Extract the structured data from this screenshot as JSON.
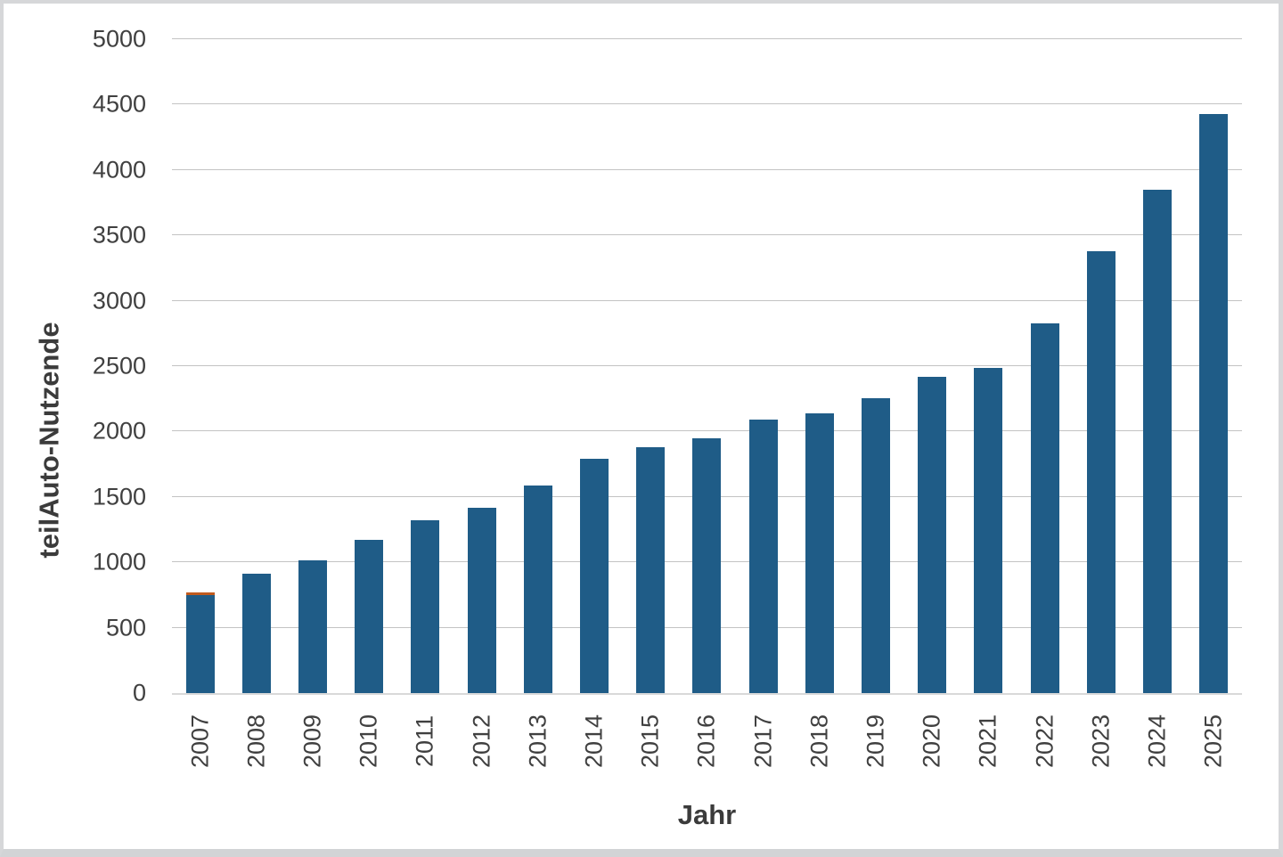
{
  "chart_data": {
    "type": "bar",
    "xlabel": "Jahr",
    "ylabel": "teilAuto-Nutzende",
    "categories": [
      "2007",
      "2008",
      "2009",
      "2010",
      "2011",
      "2012",
      "2013",
      "2014",
      "2015",
      "2016",
      "2017",
      "2018",
      "2019",
      "2020",
      "2021",
      "2022",
      "2023",
      "2024",
      "2025"
    ],
    "values": [
      770,
      915,
      1015,
      1170,
      1320,
      1415,
      1585,
      1795,
      1880,
      1950,
      2090,
      2140,
      2255,
      2415,
      2485,
      2830,
      3380,
      3850,
      4430
    ],
    "cap_segment": {
      "category": "2007",
      "value": 20,
      "color": "#c05a1e"
    },
    "ylim": [
      0,
      5000
    ],
    "yticks": [
      0,
      500,
      1000,
      1500,
      2000,
      2500,
      3000,
      3500,
      4000,
      4500,
      5000
    ],
    "grid": true,
    "legend": "none",
    "bar_color": "#1f5c87"
  },
  "colors": {
    "bar": "#1f5c87",
    "cap": "#c05a1e",
    "gridline": "#c3c3c3",
    "axis_line": "#d9d9d9",
    "text": "#404040",
    "frame_border": "#d6d7d9",
    "background": "#ffffff"
  }
}
